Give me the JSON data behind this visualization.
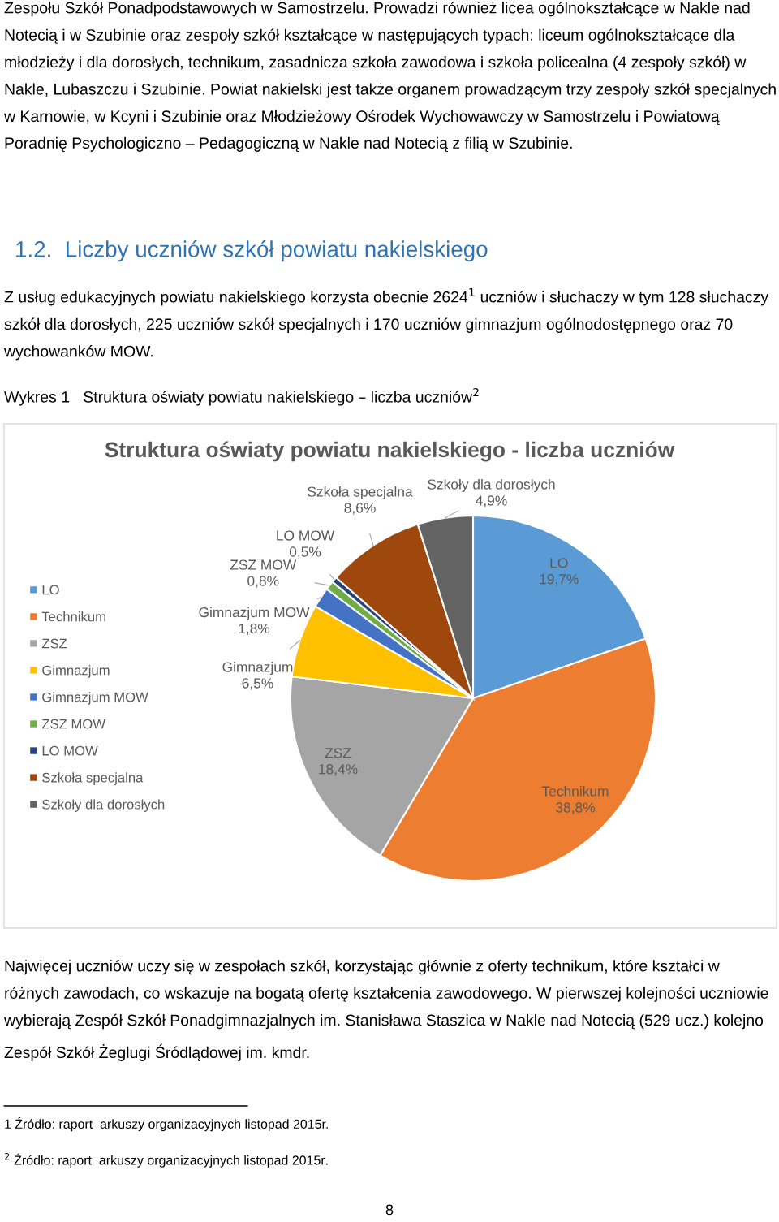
{
  "chart_data": {
    "type": "pie",
    "title": "Struktura oświaty powiatu nakielskiego - liczba uczniów",
    "categories": [
      "LO",
      "Technikum",
      "ZSZ",
      "Gimnazjum",
      "Gimnazjum MOW",
      "ZSZ MOW",
      "LO MOW",
      "Szkoła specjalna",
      "Szkoły dla dorosłych"
    ],
    "values": [
      19.7,
      38.8,
      18.4,
      6.5,
      1.8,
      0.8,
      0.5,
      8.6,
      4.9
    ],
    "colors": [
      "#5b9bd5",
      "#ed7d31",
      "#a5a5a5",
      "#ffc000",
      "#4472c4",
      "#70ad47",
      "#264478",
      "#9e480e",
      "#636363"
    ],
    "value_labels": [
      "19,7%",
      "38,8%",
      "18,4%",
      "6,5%",
      "1,8%",
      "0,8%",
      "0,5%",
      "8,6%",
      "4,9%"
    ],
    "legend": "left",
    "annotations": [
      "Zespołu Szkół Ponadpodstawowych w Samostrzelu. Prowadzi również licea ogólnokształcące w Nakle nad Notecią i w Szubinie oraz zespoły szkół kształcące w następujących typach: liceum ogólnokształcące dla młodzieży i dla dorosłych, technikum, zasadnicza szkoła zawodowa i szkoła policealna (4 zespoły szkół) w Nakle, Lubaszczu i Szubinie. Powiat nakielski jest także organem prowadzącym trzy zespoły szkół specjalnych w Karnowie, w Kcyni i Szubinie oraz Młodzieżowy Ośrodek Wychowawczy w Samostrzelu i Powiatową Poradnię Psychologiczno – Pedagogiczną w Nakle nad Notecią z filią w Szubinie.",
      "1.2.  Liczby uczniów szkół powiatu nakielskiego",
      "Z usług edukacyjnych powiatu nakielskiego korzysta obecnie 2624$^{1}$ uczniów i słuchaczy w tym 128 słuchaczy szkół dla dorosłych, 225 uczniów szkół specjalnych i 170 uczniów gimnazjum ogólnodostępnego oraz 70 wychowanków MOW.",
      "Wykres 1   Struktura oświaty powiatu nakielskiego – liczba uczniów$^{2}$",
      "Najwięcej uczniów uczy się w zespołach szkół, korzystając głównie z oferty technikum, które kształci w różnych zawodach, co wskazuje na bogatą ofertę kształcenia zawodowego. W pierwszej kolejności uczniowie wybierają Zespół Szkół Ponadgimnazjalnych im. Stanisława Staszica w Nakle nad Notecią (529 ucz.) kolejno Zespół Szkół Żeglugi Śródlądowej im. kmdr.",
      "1 Źródło: raport  arkuszy organizacyjnych listopad 2015r.",
      "$^{2}$ Źródło: raport  arkuszy organizacyjnych listopad 2015r.",
      "8"
    ]
  }
}
